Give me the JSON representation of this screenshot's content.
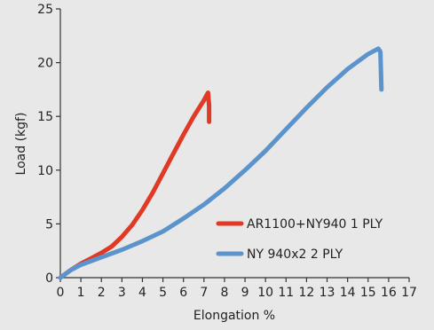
{
  "chart_data": {
    "type": "line",
    "title": "",
    "xlabel": "Elongation %",
    "ylabel": "Load (kgf)",
    "xlim": [
      0,
      17
    ],
    "ylim": [
      0,
      25
    ],
    "x_ticks": [
      0,
      1,
      2,
      3,
      4,
      5,
      6,
      7,
      8,
      9,
      10,
      11,
      12,
      13,
      14,
      15,
      16,
      17
    ],
    "y_ticks": [
      0,
      5,
      10,
      15,
      20,
      25
    ],
    "grid": false,
    "legend_position": "lower-right",
    "background_color": "#e8e8e8",
    "series": [
      {
        "name": "AR1100+NY940 1 PLY",
        "color": "#e03a26",
        "points": [
          [
            0,
            0
          ],
          [
            0.5,
            0.7
          ],
          [
            1,
            1.3
          ],
          [
            1.5,
            1.8
          ],
          [
            2,
            2.3
          ],
          [
            2.5,
            2.9
          ],
          [
            3,
            3.8
          ],
          [
            3.5,
            4.9
          ],
          [
            4,
            6.3
          ],
          [
            4.5,
            7.9
          ],
          [
            5,
            9.7
          ],
          [
            5.5,
            11.5
          ],
          [
            6,
            13.3
          ],
          [
            6.5,
            15.0
          ],
          [
            7,
            16.5
          ],
          [
            7.2,
            17.2
          ],
          [
            7.25,
            16.0
          ],
          [
            7.25,
            14.5
          ]
        ]
      },
      {
        "name": "NY 940x2 2 PLY",
        "color": "#5b93cc",
        "points": [
          [
            0,
            0
          ],
          [
            0.5,
            0.7
          ],
          [
            1,
            1.2
          ],
          [
            2,
            1.9
          ],
          [
            3,
            2.6
          ],
          [
            4,
            3.4
          ],
          [
            5,
            4.3
          ],
          [
            6,
            5.5
          ],
          [
            7,
            6.8
          ],
          [
            8,
            8.3
          ],
          [
            9,
            10.0
          ],
          [
            10,
            11.8
          ],
          [
            11,
            13.8
          ],
          [
            12,
            15.8
          ],
          [
            13,
            17.7
          ],
          [
            14,
            19.4
          ],
          [
            15,
            20.8
          ],
          [
            15.5,
            21.3
          ],
          [
            15.6,
            21.0
          ],
          [
            15.65,
            17.5
          ]
        ]
      }
    ]
  }
}
